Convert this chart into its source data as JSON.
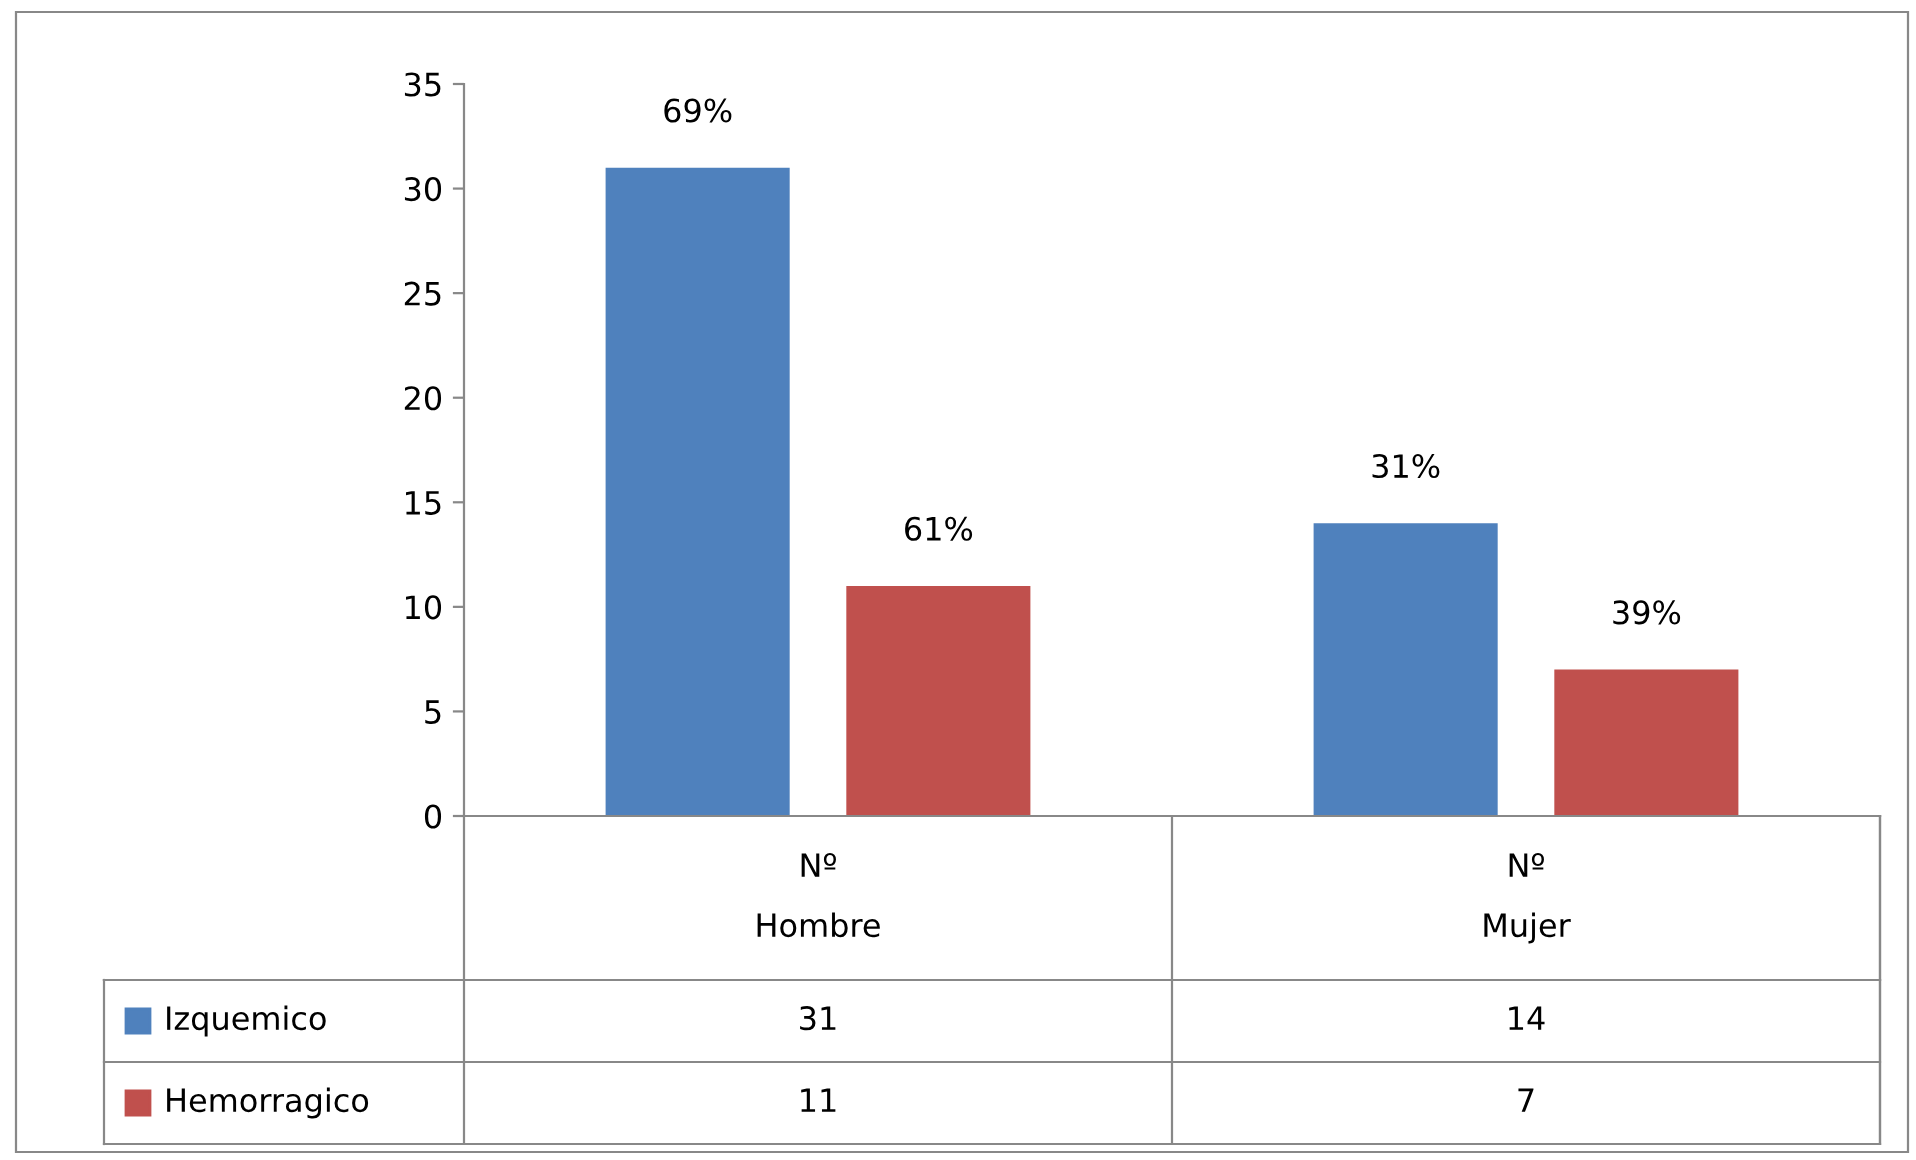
{
  "chart_data": {
    "type": "bar",
    "categories": [
      "Nº\nHombre",
      "Nº\nMujer"
    ],
    "series": [
      {
        "name": "Izquemico",
        "color": "#4f81bd",
        "values": [
          31,
          14
        ],
        "value_labels": [
          "31",
          "14"
        ]
      },
      {
        "name": "Hemorragico",
        "color": "#c0504d",
        "values": [
          11,
          7
        ],
        "value_labels": [
          "11",
          "7"
        ]
      }
    ],
    "annotations": [
      "69%",
      "31%",
      "61%",
      "39%"
    ],
    "data_labels": true,
    "ylim": [
      0,
      35
    ],
    "yticks": [
      0,
      5,
      10,
      15,
      20,
      25,
      30,
      35
    ],
    "legend": "bottom",
    "grid": false
  }
}
